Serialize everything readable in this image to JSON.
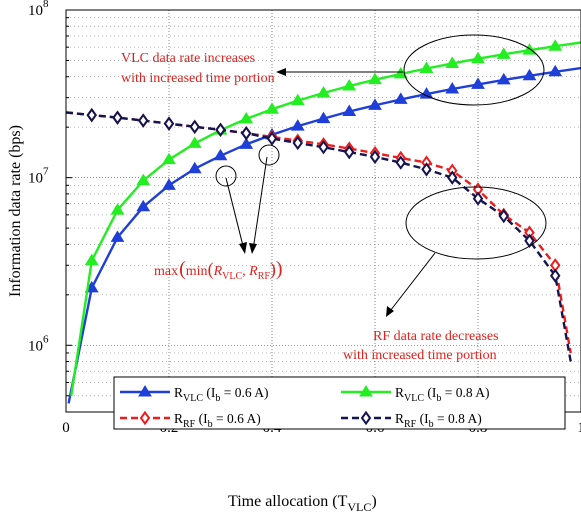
{
  "chart_data": {
    "type": "line",
    "xlabel": "Time allocation (T",
    "xlabel_sub": "VLC",
    "xlabel_close": ")",
    "ylabel": "Information data rate (bps)",
    "yscale": "log",
    "xlim": [
      0,
      1
    ],
    "ylim": [
      400000,
      100000000
    ],
    "x_tick_labels": [
      "0",
      "0.2",
      "0.4",
      "0.6",
      "0.8",
      "1"
    ],
    "y_tick_labels": [
      {
        "value": 1000000,
        "base": "10",
        "exp": "6"
      },
      {
        "value": 10000000,
        "base": "10",
        "exp": "7"
      },
      {
        "value": 100000000,
        "base": "10",
        "exp": "8"
      }
    ],
    "grid": true,
    "colors": {
      "blue": "#1f3fd9",
      "green": "#22ee22",
      "red": "#ee1c1c",
      "navy": "#141450"
    },
    "legend": {
      "placement": "bottom",
      "entries": [
        {
          "name": "R",
          "sub": "VLC",
          "rest": " (I",
          "sub2": "b",
          "rest2": " = 0.6 A)"
        },
        {
          "name": "R",
          "sub": "VLC",
          "rest": " (I",
          "sub2": "b",
          "rest2": " = 0.8 A)"
        },
        {
          "name": "R",
          "sub": "RF",
          "rest": " (I",
          "sub2": "b",
          "rest2": " = 0.6 A)"
        },
        {
          "name": "R",
          "sub": "RF",
          "rest": " (I",
          "sub2": "b",
          "rest2": " = 0.8 A)"
        }
      ]
    },
    "annotations": {
      "vlc_line1": "VLC data rate increases",
      "vlc_line2": "with increased time portion",
      "rf_line1": "RF data rate decreases",
      "rf_line2": "with increased time portion",
      "maxmin_pre": "max",
      "maxmin_inner": "min",
      "maxmin_r": "R",
      "maxmin_sub1": "VLC",
      "maxmin_sub2": "RF"
    },
    "series": [
      {
        "style": "blue",
        "x": [
          0.005,
          0.05,
          0.1,
          0.15,
          0.2,
          0.25,
          0.3,
          0.35,
          0.4,
          0.45,
          0.5,
          0.55,
          0.6,
          0.65,
          0.7,
          0.75,
          0.8,
          0.85,
          0.9,
          0.95,
          1.0
        ],
        "y": [
          450000,
          2200000,
          4400000,
          6700000,
          9000000,
          11300000,
          13500000,
          15800000,
          18000000,
          20300000,
          22500000,
          24800000,
          27000000,
          29300000,
          31500000,
          33800000,
          36000000,
          38300000,
          40500000,
          42800000,
          45000000
        ]
      },
      {
        "style": "green",
        "x": [
          0.01,
          0.05,
          0.1,
          0.15,
          0.2,
          0.25,
          0.3,
          0.35,
          0.4,
          0.45,
          0.5,
          0.55,
          0.6,
          0.65,
          0.7,
          0.75,
          0.8,
          0.85,
          0.9,
          0.95,
          1.0
        ],
        "y": [
          500000,
          3200000,
          6400000,
          9600000,
          12800000,
          16000000,
          19200000,
          22400000,
          25600000,
          28800000,
          32000000,
          35200000,
          38400000,
          41600000,
          44800000,
          48000000,
          51200000,
          54400000,
          57600000,
          60800000,
          64000000
        ]
      },
      {
        "style": "red",
        "x": [
          0.0,
          0.05,
          0.1,
          0.15,
          0.2,
          0.25,
          0.3,
          0.35,
          0.4,
          0.45,
          0.5,
          0.55,
          0.6,
          0.65,
          0.7,
          0.75,
          0.8,
          0.85,
          0.9,
          0.95,
          0.98
        ],
        "y": [
          24500000,
          23600000,
          22800000,
          21900000,
          21000000,
          20100000,
          19300000,
          18400000,
          17500000,
          16600000,
          15800000,
          14900000,
          14000000,
          13100000,
          12300000,
          11000000,
          8500000,
          6000000,
          4700000,
          3000000,
          900000
        ]
      },
      {
        "style": "navy",
        "x": [
          0.0,
          0.05,
          0.1,
          0.15,
          0.2,
          0.25,
          0.3,
          0.35,
          0.4,
          0.45,
          0.5,
          0.55,
          0.6,
          0.65,
          0.7,
          0.75,
          0.8,
          0.85,
          0.9,
          0.95,
          0.98
        ],
        "y": [
          24500000,
          23600000,
          22800000,
          21900000,
          21000000,
          20100000,
          19300000,
          18400000,
          17100000,
          16100000,
          15200000,
          14200000,
          13300000,
          12300000,
          11200000,
          10000000,
          7500000,
          5900000,
          4200000,
          2600000,
          800000
        ]
      }
    ]
  }
}
